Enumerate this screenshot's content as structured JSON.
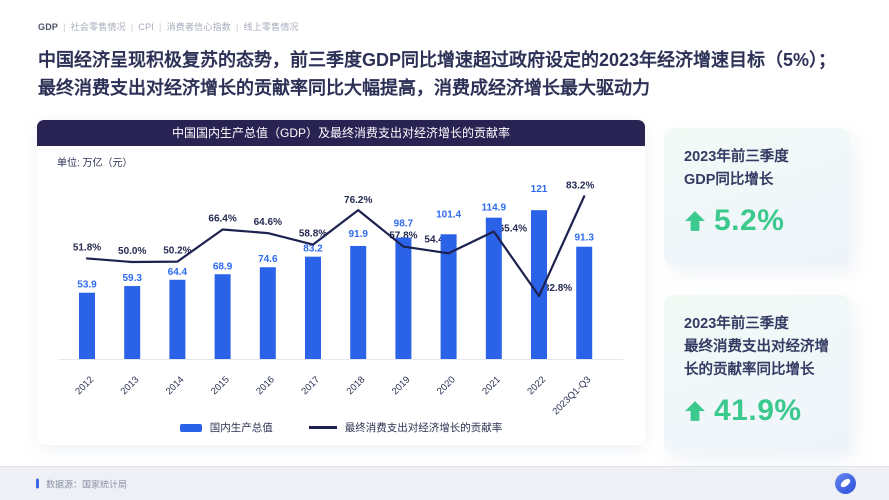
{
  "breadcrumb": {
    "items": [
      "GDP",
      "社会零售情况",
      "CPI",
      "消费者信心指数",
      "线上零售情况"
    ],
    "active": "GDP",
    "separator": "|"
  },
  "headline": {
    "line1": "中国经济呈现积极复苏的态势，前三季度GDP同比增速超过政府设定的2023年经济增速目标（5%）；",
    "line2": "最终消费支出对经济增长的贡献率同比大幅提高，消费成经济增长最大驱动力"
  },
  "chart_card": {
    "title": "中国国内生产总值（GDP）及最终消费支出对经济增长的贡献率",
    "unit_label": "单位: 万亿（元）"
  },
  "chart_data": {
    "type": "bar+line",
    "title": "中国国内生产总值（GDP）及最终消费支出对经济增长的贡献率",
    "categories": [
      "2012",
      "2013",
      "2014",
      "2015",
      "2016",
      "2017",
      "2018",
      "2019",
      "2020",
      "2021",
      "2022",
      "2023Q1-Q3"
    ],
    "series": [
      {
        "name": "国内生产总值",
        "kind": "bar",
        "color": "#2b63e8",
        "values": [
          53.9,
          59.3,
          64.4,
          68.9,
          74.6,
          83.2,
          91.9,
          98.7,
          101.4,
          114.9,
          121,
          91.3
        ]
      },
      {
        "name": "最终消费支出对经济增长的贡献率",
        "kind": "line",
        "color": "#1c2150",
        "unit": "%",
        "values": [
          51.8,
          50.0,
          50.2,
          66.4,
          64.6,
          58.8,
          76.2,
          57.8,
          54.4,
          65.4,
          32.8,
          83.2
        ]
      }
    ],
    "xlabel": "",
    "ylabel": "万亿（元）",
    "grid": false,
    "legend_position": "bottom",
    "value_labels": true
  },
  "stat_cards": [
    {
      "heading": "2023年前三季度\nGDP同比增长",
      "value": "5.2%",
      "direction": "up",
      "accent": "#3cc98e"
    },
    {
      "heading": "2023年前三季度\n最终消费支出对经济增\n长的贡献率同比增长",
      "value": "41.9%",
      "direction": "up",
      "accent": "#3cc98e"
    }
  ],
  "footer": {
    "source": "数据源：国家统计局"
  },
  "icons": {
    "up_arrow": "up-arrow-icon",
    "logo": "circle-leaf-logo"
  },
  "colors": {
    "bar": "#2b63e8",
    "bar_label": "#2e6bf0",
    "line": "#1c2150",
    "line_label": "#252a52",
    "banner": "#282353",
    "axis": "#e4e7ef",
    "axis_label": "#2b3052",
    "green": "#3cc98e"
  }
}
